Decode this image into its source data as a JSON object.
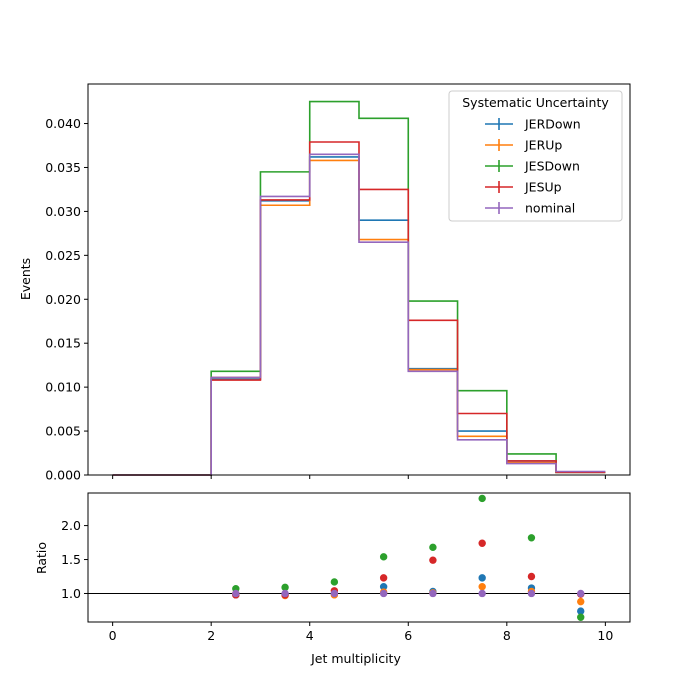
{
  "chart_data": [
    {
      "type": "step",
      "xlabel": "",
      "ylabel": "Events",
      "xlim": [
        -0.5,
        10.5
      ],
      "ylim": [
        0,
        0.0445
      ],
      "xticks": [
        0,
        2,
        4,
        6,
        8,
        10
      ],
      "yticks": [
        0.0,
        0.005,
        0.01,
        0.015,
        0.02,
        0.025,
        0.03,
        0.035,
        0.04
      ],
      "ytick_labels": [
        "0.000",
        "0.005",
        "0.010",
        "0.015",
        "0.020",
        "0.025",
        "0.030",
        "0.035",
        "0.040"
      ],
      "bin_edges": [
        0,
        1,
        2,
        3,
        4,
        5,
        6,
        7,
        8,
        9,
        10
      ],
      "legend": {
        "title": "Systematic Uncertainty",
        "placement": "top-right"
      },
      "series": [
        {
          "name": "JERDown",
          "color": "#1f77b4",
          "values": [
            0,
            0,
            0.0109,
            0.0312,
            0.0362,
            0.029,
            0.0121,
            0.005,
            0.0016,
            0.0003
          ]
        },
        {
          "name": "JERUp",
          "color": "#ff7f0e",
          "values": [
            0,
            0,
            0.0111,
            0.0307,
            0.0358,
            0.0268,
            0.012,
            0.0044,
            0.0014,
            0.0003
          ]
        },
        {
          "name": "JESDown",
          "color": "#2ca02c",
          "values": [
            0,
            0,
            0.0118,
            0.0345,
            0.0425,
            0.0406,
            0.0198,
            0.0096,
            0.0024,
            0.0003
          ]
        },
        {
          "name": "JESUp",
          "color": "#d62728",
          "values": [
            0,
            0,
            0.0108,
            0.0313,
            0.0379,
            0.0325,
            0.0176,
            0.007,
            0.0016,
            0.0003
          ]
        },
        {
          "name": "nominal",
          "color": "#9467bd",
          "values": [
            0,
            0,
            0.0111,
            0.0317,
            0.0365,
            0.0265,
            0.0118,
            0.004,
            0.0013,
            0.0004
          ]
        }
      ]
    },
    {
      "type": "scatter",
      "xlabel": "Jet multiplicity",
      "ylabel": "Ratio",
      "xlim": [
        -0.5,
        10.5
      ],
      "ylim": [
        0.58,
        2.48
      ],
      "xticks": [
        0,
        2,
        4,
        6,
        8,
        10
      ],
      "yticks": [
        1.0,
        1.5,
        2.0
      ],
      "ytick_labels": [
        "1.0",
        "1.5",
        "2.0"
      ],
      "reference_line": 1.0,
      "x": [
        2.5,
        3.5,
        4.5,
        5.5,
        6.5,
        7.5,
        8.5,
        9.5
      ],
      "series": [
        {
          "name": "JERDown",
          "color": "#1f77b4",
          "values": [
            0.98,
            0.99,
            1.0,
            1.1,
            1.03,
            1.23,
            1.08,
            0.74
          ]
        },
        {
          "name": "JERUp",
          "color": "#ff7f0e",
          "values": [
            1.0,
            0.97,
            0.98,
            1.02,
            1.01,
            1.1,
            1.03,
            0.88
          ]
        },
        {
          "name": "JESDown",
          "color": "#2ca02c",
          "values": [
            1.07,
            1.09,
            1.17,
            1.54,
            1.68,
            2.4,
            1.82,
            0.65
          ]
        },
        {
          "name": "JESUp",
          "color": "#d62728",
          "values": [
            0.98,
            0.98,
            1.04,
            1.23,
            1.49,
            1.74,
            1.25,
            0.99
          ]
        },
        {
          "name": "nominal",
          "color": "#9467bd",
          "values": [
            1.0,
            1.0,
            1.0,
            1.0,
            1.0,
            1.0,
            1.0,
            1.0
          ]
        }
      ]
    }
  ]
}
